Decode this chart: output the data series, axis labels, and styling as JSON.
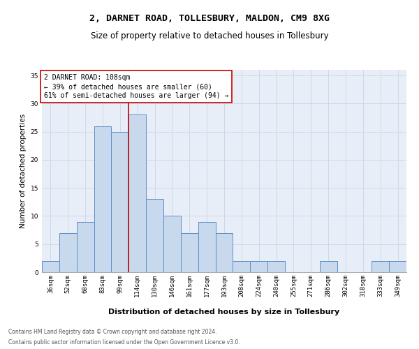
{
  "title1": "2, DARNET ROAD, TOLLESBURY, MALDON, CM9 8XG",
  "title2": "Size of property relative to detached houses in Tollesbury",
  "xlabel": "Distribution of detached houses by size in Tollesbury",
  "ylabel": "Number of detached properties",
  "bar_labels": [
    "36sqm",
    "52sqm",
    "68sqm",
    "83sqm",
    "99sqm",
    "114sqm",
    "130sqm",
    "146sqm",
    "161sqm",
    "177sqm",
    "193sqm",
    "208sqm",
    "224sqm",
    "240sqm",
    "255sqm",
    "271sqm",
    "286sqm",
    "302sqm",
    "318sqm",
    "333sqm",
    "349sqm"
  ],
  "bar_values": [
    2,
    7,
    9,
    26,
    25,
    28,
    13,
    10,
    7,
    9,
    7,
    2,
    2,
    2,
    0,
    0,
    2,
    0,
    0,
    2,
    2
  ],
  "bar_color": "#c9d9ed",
  "bar_edge_color": "#5b8fc9",
  "vline_x": 4.5,
  "vline_color": "#cc0000",
  "annotation_text": "2 DARNET ROAD: 108sqm\n← 39% of detached houses are smaller (60)\n61% of semi-detached houses are larger (94) →",
  "annotation_box_color": "#ffffff",
  "annotation_box_edge": "#cc0000",
  "ylim": [
    0,
    36
  ],
  "yticks": [
    0,
    5,
    10,
    15,
    20,
    25,
    30,
    35
  ],
  "grid_color": "#d0d8e8",
  "background_color": "#e8eef7",
  "footer1": "Contains HM Land Registry data © Crown copyright and database right 2024.",
  "footer2": "Contains public sector information licensed under the Open Government Licence v3.0.",
  "title1_fontsize": 9.5,
  "title2_fontsize": 8.5,
  "xlabel_fontsize": 8,
  "ylabel_fontsize": 7.5,
  "tick_fontsize": 6.5,
  "annotation_fontsize": 7,
  "footer_fontsize": 5.5
}
